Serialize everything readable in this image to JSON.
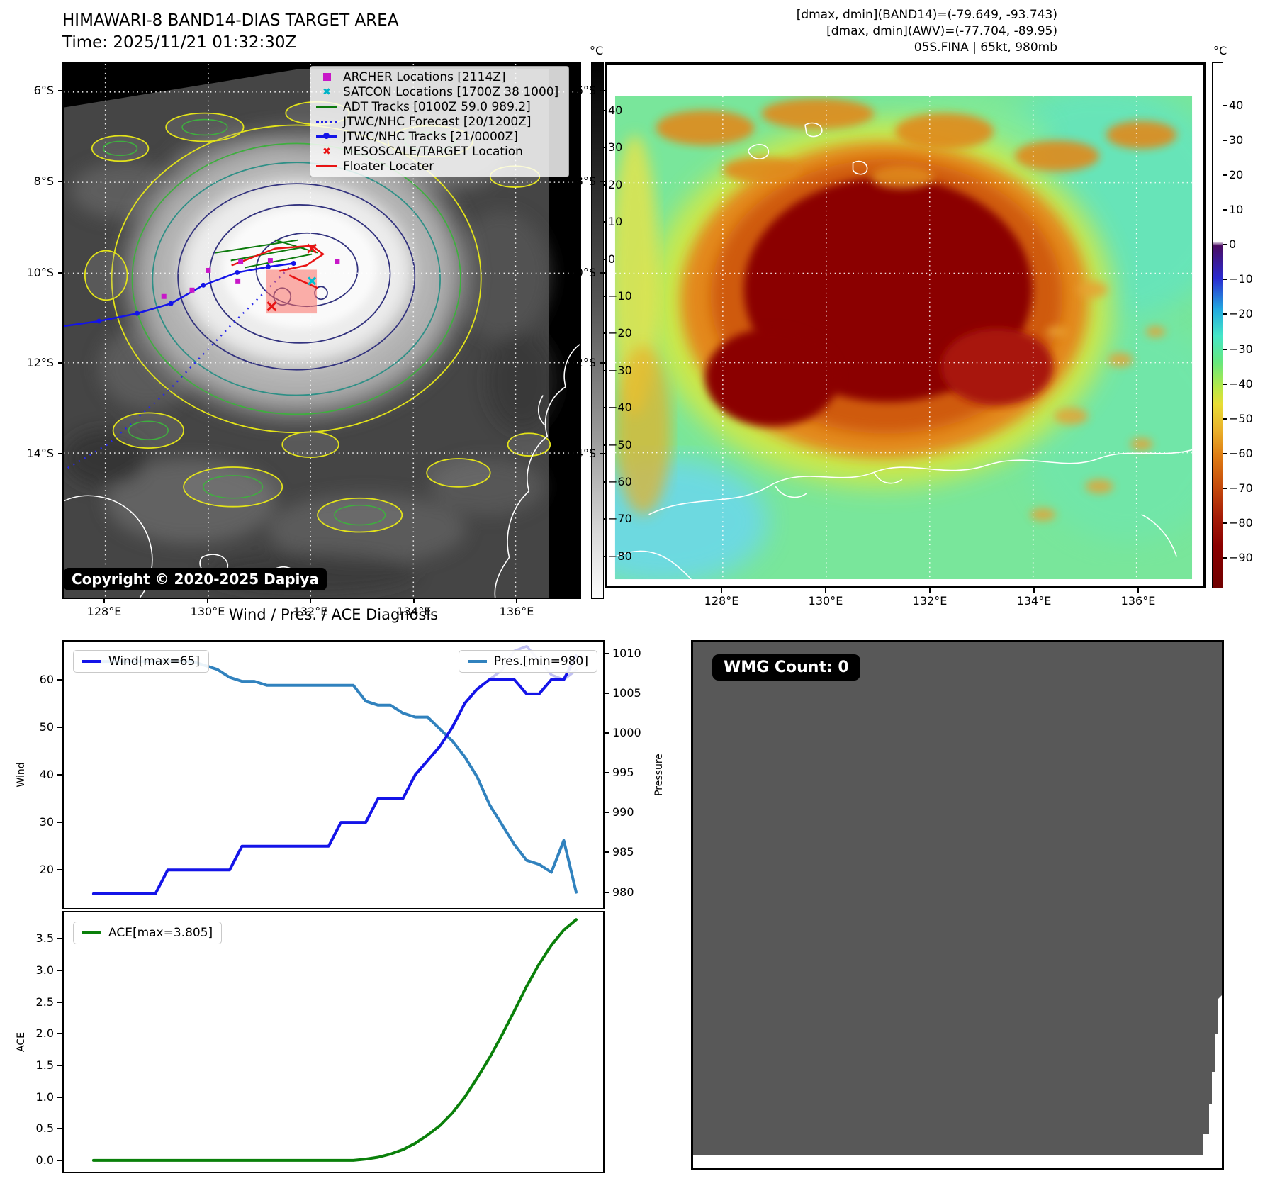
{
  "header": {
    "title_line1": "HIMAWARI-8 BAND14-DIAS TARGET AREA",
    "title_line2": "Time: 2025/11/21 01:32:30Z",
    "info_lines": [
      "[dmax, dmin](BAND14)=(-79.649, -93.743)",
      "[dmax, dmin](AWV)=(-77.704, -89.95)",
      "05S.FINA | 65kt, 980mb"
    ]
  },
  "band14_map": {
    "legend": [
      {
        "label": "ARCHER Locations [2114Z]",
        "marker": "square",
        "color": "#c817c8"
      },
      {
        "label": "SATCON Locations [1700Z 38 1000]",
        "marker": "cross",
        "color": "#00b4c8"
      },
      {
        "label": "ADT Tracks [0100Z 59.0 989.2]",
        "marker": "line",
        "color": "#0c7a0c"
      },
      {
        "label": "JTWC/NHC Forecast [20/1200Z]",
        "marker": "dotted-line",
        "color": "#2525e8"
      },
      {
        "label": "JTWC/NHC Tracks [21/0000Z]",
        "marker": "line-marker",
        "color": "#1414e8"
      },
      {
        "label": "MESOSCALE/TARGET Location",
        "marker": "cross",
        "color": "#e81414"
      },
      {
        "label": "Floater Locater",
        "marker": "line",
        "color": "#e81414"
      }
    ],
    "copyright": "Copyright © 2020-2025 Dapiya",
    "x_tick_labels": [
      "128°E",
      "130°E",
      "132°E",
      "134°E",
      "136°E"
    ],
    "y_tick_labels": [
      "6°S",
      "8°S",
      "10°S",
      "12°S",
      "14°S"
    ],
    "colorbar": {
      "unit": "°C",
      "tick_labels": [
        "40",
        "30",
        "20",
        "10",
        "0",
        "−10",
        "−20",
        "−30",
        "−40",
        "−50",
        "−60",
        "−70",
        "−80"
      ]
    }
  },
  "awv_map": {
    "x_tick_labels": [
      "128°E",
      "130°E",
      "132°E",
      "134°E",
      "136°E"
    ],
    "y_tick_labels": [
      "6°S",
      "8°S",
      "10°S",
      "12°S",
      "14°S"
    ],
    "colorbar": {
      "unit": "°C",
      "tick_labels": [
        "40",
        "30",
        "20",
        "10",
        "0",
        "−10",
        "−20",
        "−30",
        "−40",
        "−50",
        "−60",
        "−70",
        "−80",
        "−90"
      ]
    }
  },
  "wmg": {
    "label": "WMG Count: 0"
  },
  "chart_data": [
    {
      "type": "line",
      "title": "Wind / Pres. / ACE Diagnosis",
      "series": [
        {
          "name": "Wind",
          "legend": "Wind[max=65]",
          "color": "#1414e8",
          "y_axis": "left",
          "max": 65,
          "values": [
            15,
            15,
            15,
            15,
            15,
            15,
            20,
            20,
            20,
            20,
            20,
            20,
            25,
            25,
            25,
            25,
            25,
            25,
            25,
            25,
            30,
            30,
            30,
            35,
            35,
            35,
            40,
            43,
            46,
            50,
            55,
            58,
            60,
            60,
            60,
            57,
            57,
            60,
            60,
            65
          ]
        },
        {
          "name": "Wind forecast overlay",
          "color": "#b9b9f2",
          "y_axis": "left",
          "offset": 32,
          "values": [
            60,
            62,
            66,
            67,
            64,
            61,
            60,
            62
          ]
        },
        {
          "name": "Pressure",
          "legend": "Pres.[min=980]",
          "color": "#3182be",
          "y_axis": "right",
          "min": 980,
          "values": [
            1009,
            1009,
            1009,
            1009,
            1009,
            1009,
            1009,
            1009,
            1009,
            1008.5,
            1008,
            1007,
            1006.5,
            1006.5,
            1006,
            1006,
            1006,
            1006,
            1006,
            1006,
            1006,
            1006,
            1004,
            1003.5,
            1003.5,
            1002.5,
            1002,
            1002,
            1000.5,
            999,
            997,
            994.5,
            991,
            988.5,
            986,
            984,
            983.5,
            982.5,
            986.5,
            980
          ]
        }
      ],
      "left_axis": {
        "label": "Wind",
        "ylim": [
          12,
          68
        ],
        "tick_values": [
          20,
          30,
          40,
          50,
          60
        ],
        "tick_labels": [
          "20",
          "30",
          "40",
          "50",
          "60"
        ]
      },
      "right_axis": {
        "label": "Pressure",
        "ylim": [
          978,
          1011.5
        ],
        "tick_values": [
          980,
          985,
          990,
          995,
          1000,
          1005,
          1010
        ],
        "tick_labels": [
          "980",
          "985",
          "990",
          "995",
          "1000",
          "1005",
          "1010"
        ]
      },
      "legend_position": "upper left / upper right",
      "grid": false
    },
    {
      "type": "line",
      "series": [
        {
          "name": "ACE",
          "legend": "ACE[max=3.805]",
          "color": "#0a800a",
          "max": 3.805,
          "values": [
            0,
            0,
            0,
            0,
            0,
            0,
            0,
            0,
            0,
            0,
            0,
            0,
            0,
            0,
            0,
            0,
            0,
            0,
            0,
            0,
            0,
            0,
            0.02,
            0.05,
            0.1,
            0.17,
            0.27,
            0.4,
            0.55,
            0.75,
            1,
            1.3,
            1.62,
            1.98,
            2.36,
            2.75,
            3.1,
            3.4,
            3.64,
            3.805
          ]
        }
      ],
      "left_axis": {
        "label": "ACE",
        "ylim": [
          -0.18,
          3.92
        ],
        "tick_values": [
          0,
          0.5,
          1,
          1.5,
          2,
          2.5,
          3,
          3.5
        ],
        "tick_labels": [
          "0.0",
          "0.5",
          "1.0",
          "1.5",
          "2.0",
          "2.5",
          "3.0",
          "3.5"
        ]
      },
      "legend_position": "upper left",
      "grid": false
    }
  ]
}
